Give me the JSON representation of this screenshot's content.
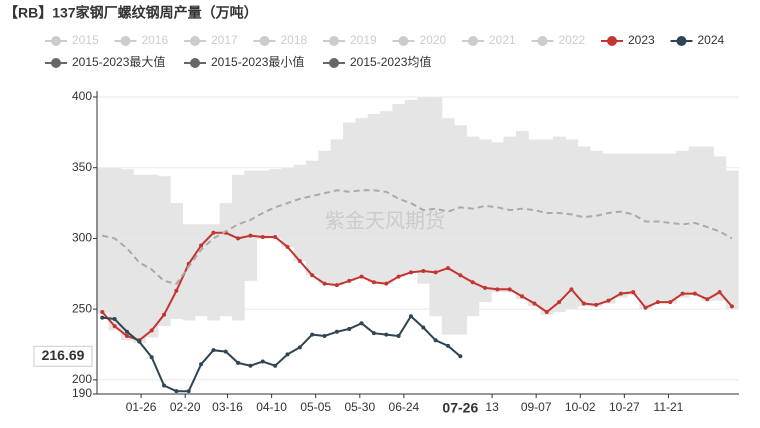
{
  "chart_data": {
    "type": "line",
    "title": "【RB】137家钢厂螺纹钢周产量（万吨）",
    "watermark": "紫金天风期货",
    "x": [
      "01-04",
      "01-11",
      "01-18",
      "01-25",
      "02-01",
      "02-08",
      "02-15",
      "02-22",
      "03-01",
      "03-08",
      "03-15",
      "03-22",
      "03-29",
      "04-05",
      "04-12",
      "04-19",
      "04-26",
      "05-03",
      "05-10",
      "05-17",
      "05-24",
      "05-31",
      "06-07",
      "06-14",
      "06-21",
      "06-28",
      "07-05",
      "07-12",
      "07-19",
      "07-26",
      "08-02",
      "08-09",
      "08-16",
      "08-23",
      "08-30",
      "09-06",
      "09-13",
      "09-20",
      "09-27",
      "10-04",
      "10-11",
      "10-18",
      "10-25",
      "11-01",
      "11-08",
      "11-15",
      "11-22",
      "11-29",
      "12-06",
      "12-13",
      "12-20",
      "12-27"
    ],
    "xlim": [
      "01-01",
      "12-31"
    ],
    "xticks": [
      {
        "value": "01-26",
        "label": "01-26"
      },
      {
        "value": "02-20",
        "label": "02-20"
      },
      {
        "value": "03-16",
        "label": "03-16"
      },
      {
        "value": "04-10",
        "label": "04-10"
      },
      {
        "value": "05-05",
        "label": "05-05"
      },
      {
        "value": "05-30",
        "label": "05-30"
      },
      {
        "value": "06-24",
        "label": "06-24"
      },
      {
        "value": "08-13",
        "label": "13"
      },
      {
        "value": "09-07",
        "label": "09-07"
      },
      {
        "value": "10-02",
        "label": "10-02"
      },
      {
        "value": "10-27",
        "label": "10-27"
      },
      {
        "value": "11-21",
        "label": "11-21"
      }
    ],
    "ylim": [
      190,
      400
    ],
    "yticks": [
      190,
      200,
      250,
      300,
      350,
      400
    ],
    "grid": true,
    "crosshair": {
      "x": "07-26",
      "y": 216.69
    },
    "series": [
      {
        "name": "2015",
        "color": "#cccccc",
        "visible": false
      },
      {
        "name": "2016",
        "color": "#cccccc",
        "visible": false
      },
      {
        "name": "2017",
        "color": "#cccccc",
        "visible": false
      },
      {
        "name": "2018",
        "color": "#cccccc",
        "visible": false
      },
      {
        "name": "2019",
        "color": "#cccccc",
        "visible": false
      },
      {
        "name": "2020",
        "color": "#cccccc",
        "visible": false
      },
      {
        "name": "2021",
        "color": "#cccccc",
        "visible": false
      },
      {
        "name": "2022",
        "color": "#cccccc",
        "visible": false
      },
      {
        "name": "2023",
        "color": "#c23531",
        "style": "line",
        "values": [
          248,
          238,
          231,
          228,
          235,
          246,
          263,
          282,
          295,
          304,
          304,
          300,
          302,
          301,
          301,
          294,
          284,
          274,
          268,
          267,
          270,
          273,
          269,
          268,
          273,
          276,
          277,
          276,
          279,
          274,
          269,
          265,
          264,
          264,
          259,
          254,
          248,
          255,
          264,
          254,
          253,
          256,
          261,
          262,
          251,
          255,
          255,
          261,
          261,
          257,
          262,
          252
        ]
      },
      {
        "name": "2024",
        "color": "#2f4554",
        "style": "line",
        "values": [
          244,
          243,
          234,
          227,
          216,
          196,
          192,
          192,
          211,
          221,
          220,
          212,
          210,
          213,
          210,
          218,
          223,
          232,
          231,
          234,
          236,
          240,
          233,
          232,
          231,
          245,
          237,
          228,
          224,
          216.69,
          null,
          null,
          null,
          null,
          null,
          null,
          null,
          null,
          null,
          null,
          null,
          null,
          null,
          null,
          null,
          null,
          null,
          null,
          null,
          null,
          null,
          null
        ]
      },
      {
        "name": "2015-2023最大值",
        "color": "#666666",
        "style": "band-max",
        "values": [
          350,
          350,
          349,
          345,
          345,
          344,
          325,
          310,
          310,
          310,
          325,
          345,
          348,
          348,
          349,
          350,
          352,
          355,
          362,
          370,
          382,
          385,
          388,
          390,
          395,
          398,
          400,
          400,
          385,
          380,
          372,
          370,
          368,
          372,
          376,
          370,
          370,
          372,
          370,
          365,
          362,
          360,
          360,
          360,
          360,
          360,
          360,
          362,
          365,
          365,
          358,
          348
        ]
      },
      {
        "name": "2015-2023最小值",
        "color": "#666666",
        "style": "band-min",
        "values": [
          247,
          235,
          228,
          226,
          230,
          238,
          243,
          242,
          245,
          242,
          245,
          242,
          270,
          300,
          300,
          294,
          284,
          274,
          268,
          267,
          270,
          273,
          269,
          268,
          273,
          276,
          268,
          245,
          232,
          232,
          245,
          255,
          262,
          262,
          257,
          252,
          246,
          248,
          250,
          252,
          252,
          254,
          258,
          260,
          250,
          254,
          254,
          258,
          260,
          256,
          256,
          250
        ]
      },
      {
        "name": "2015-2023均值",
        "color": "#666666",
        "style": "dashed",
        "line_color": "#aaaaaa",
        "values": [
          302,
          300,
          293,
          283,
          278,
          270,
          268,
          280,
          292,
          300,
          305,
          310,
          313,
          318,
          322,
          325,
          328,
          330,
          332,
          334,
          333,
          334,
          334,
          333,
          328,
          325,
          320,
          321,
          319,
          322,
          321,
          323,
          322,
          320,
          321,
          320,
          318,
          318,
          317,
          315,
          316,
          318,
          319,
          317,
          312,
          312,
          311,
          310,
          311,
          308,
          305,
          300
        ]
      }
    ]
  }
}
